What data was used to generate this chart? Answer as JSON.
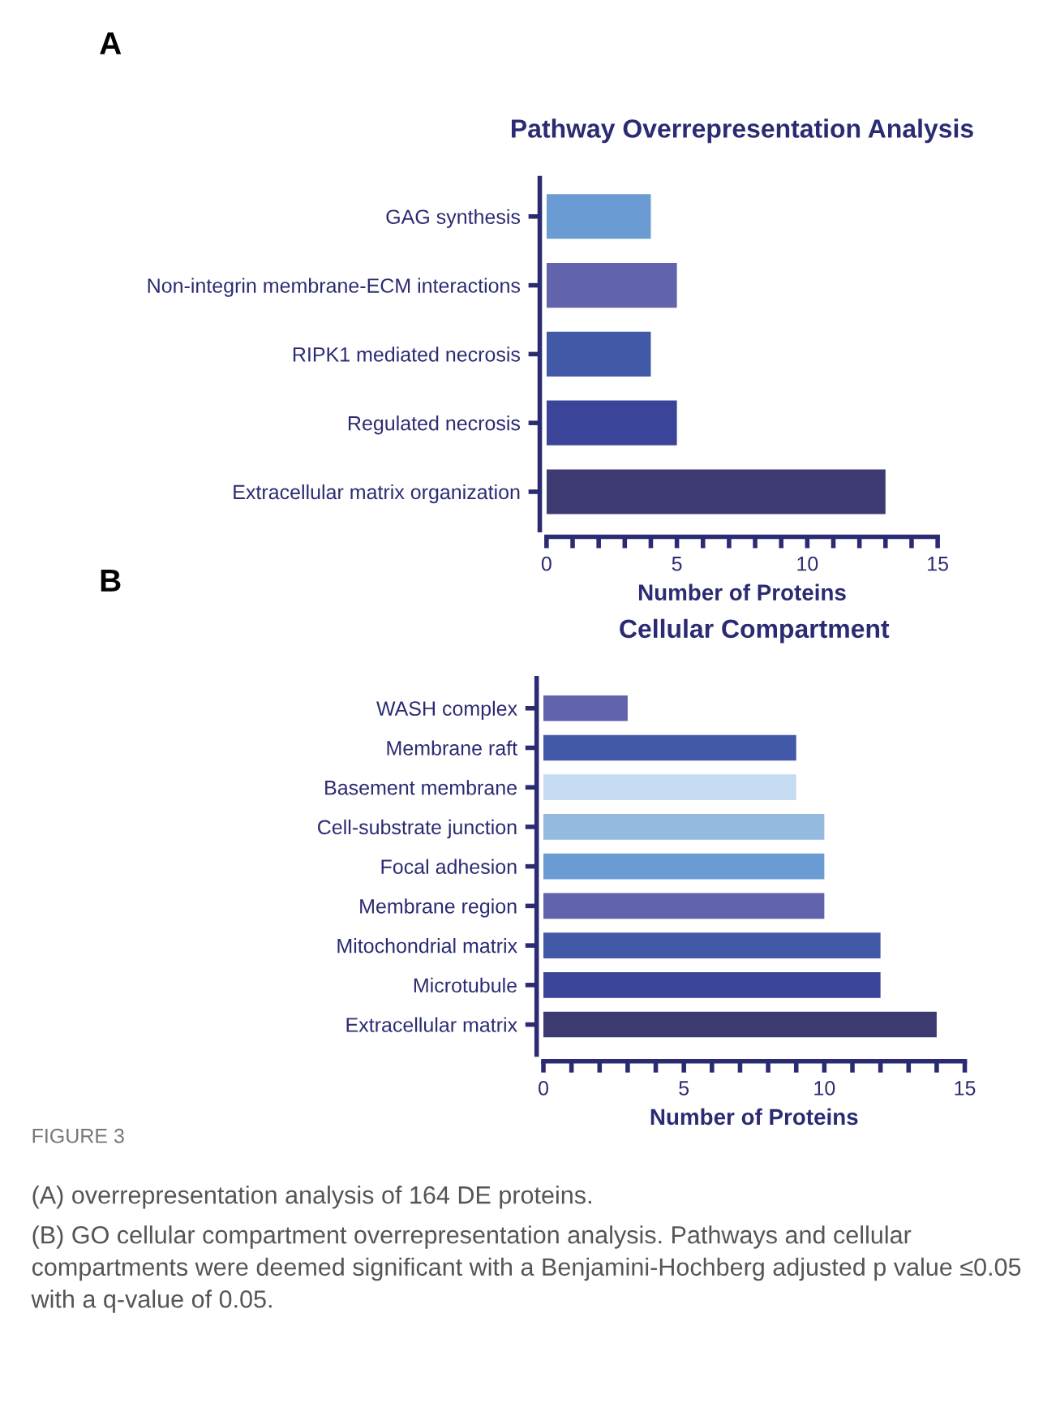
{
  "chart_data": [
    {
      "type": "bar",
      "orientation": "horizontal",
      "title": "Pathway Overrepresentation Analysis",
      "xlabel": "Number of Proteins",
      "categories": [
        "GAG synthesis",
        "Non-integrin membrane-ECM interactions",
        "RIPK1 mediated necrosis",
        "Regulated necrosis",
        "Extracellular matrix organization"
      ],
      "values": [
        4,
        5,
        4,
        5,
        13
      ],
      "colors": [
        "#6a9bd3",
        "#6163ad",
        "#4259a8",
        "#3a4599",
        "#3c3a70"
      ],
      "xlim": [
        0,
        15
      ],
      "xticks": [
        0,
        {
          "value": 1,
          "label": null
        },
        {
          "value": 2,
          "label": null
        },
        {
          "value": 3,
          "label": null
        },
        {
          "value": 4,
          "label": null
        },
        5,
        {
          "value": 6,
          "label": null
        },
        {
          "value": 7,
          "label": null
        },
        {
          "value": 8,
          "label": null
        },
        {
          "value": 9,
          "label": null
        },
        10,
        {
          "value": 11,
          "label": null
        },
        {
          "value": 12,
          "label": null
        },
        {
          "value": 13,
          "label": null
        },
        {
          "value": 14,
          "label": null
        },
        15
      ],
      "grid": false,
      "legend": false,
      "annotations": [
        "A"
      ]
    },
    {
      "type": "bar",
      "orientation": "horizontal",
      "title": "Cellular Compartment",
      "xlabel": "Number of Proteins",
      "categories": [
        "WASH complex",
        "Membrane raft",
        "Basement membrane",
        "Cell-substrate junction",
        "Focal adhesion",
        "Membrane region",
        "Mitochondrial matrix",
        "Microtubule",
        "Extracellular matrix"
      ],
      "values": [
        3,
        9,
        9,
        10,
        10,
        10,
        12,
        12,
        14
      ],
      "colors": [
        "#6163ad",
        "#4259a8",
        "#c6dcf2",
        "#94badf",
        "#6a9bd3",
        "#6163ad",
        "#4259a8",
        "#3a4599",
        "#3c3a70"
      ],
      "xlim": [
        0,
        15
      ],
      "xticks": [
        0,
        {
          "value": 1,
          "label": null
        },
        {
          "value": 2,
          "label": null
        },
        {
          "value": 3,
          "label": null
        },
        {
          "value": 4,
          "label": null
        },
        5,
        {
          "value": 6,
          "label": null
        },
        {
          "value": 7,
          "label": null
        },
        {
          "value": 8,
          "label": null
        },
        {
          "value": 9,
          "label": null
        },
        10,
        {
          "value": 11,
          "label": null
        },
        {
          "value": 12,
          "label": null
        },
        {
          "value": 13,
          "label": null
        },
        {
          "value": 14,
          "label": null
        },
        15
      ],
      "grid": false,
      "legend": false,
      "annotations": [
        "B",
        "FIGURE 3",
        "(A) overrepresentation analysis of 164 DE proteins.",
        "(B) GO cellular compartment overrepresentation analysis. Pathways and cellular compartments were deemed significant with a Benjamini-Hochberg adjusted p value ≤0.05 with a q-value of 0.05."
      ]
    }
  ]
}
